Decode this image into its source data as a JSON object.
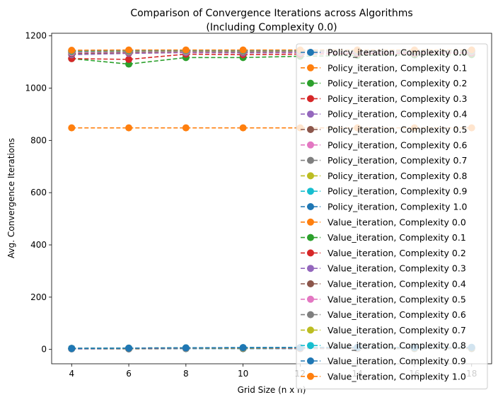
{
  "chart_data": {
    "type": "line",
    "title": "Comparison of Convergence Iterations across Algorithms",
    "subtitle": "(Including Complexity 0.0)",
    "xlabel": "Grid Size (n x n)",
    "ylabel": "Avg. Convergence Iterations",
    "x": [
      4,
      6,
      8,
      10,
      12,
      14,
      16,
      18
    ],
    "xticks": [
      4,
      6,
      8,
      10,
      12,
      14,
      16,
      18
    ],
    "yticks": [
      0,
      200,
      400,
      600,
      800,
      1000,
      1200
    ],
    "xlim": [
      3.3,
      18.7
    ],
    "ylim": [
      -55,
      1210
    ],
    "grid": false,
    "legend_position": "right",
    "line_style": "dashed",
    "marker": "circle",
    "series": [
      {
        "name": "Policy_iteration, Complexity 0.0",
        "color": "#1f77b4",
        "values": [
          2,
          2,
          3,
          3,
          3,
          3,
          3,
          3
        ]
      },
      {
        "name": "Policy_iteration, Complexity 0.1",
        "color": "#ff7f0e",
        "values": [
          3,
          3,
          4,
          4,
          4,
          4,
          4,
          4
        ]
      },
      {
        "name": "Policy_iteration, Complexity 0.2",
        "color": "#2ca02c",
        "values": [
          3,
          4,
          4,
          4,
          5,
          5,
          5,
          5
        ]
      },
      {
        "name": "Policy_iteration, Complexity 0.3",
        "color": "#d62728",
        "values": [
          3,
          4,
          5,
          5,
          5,
          5,
          6,
          6
        ]
      },
      {
        "name": "Policy_iteration, Complexity 0.4",
        "color": "#9467bd",
        "values": [
          3,
          4,
          5,
          5,
          6,
          6,
          6,
          6
        ]
      },
      {
        "name": "Policy_iteration, Complexity 0.5",
        "color": "#8c564b",
        "values": [
          4,
          4,
          5,
          6,
          6,
          6,
          6,
          6
        ]
      },
      {
        "name": "Policy_iteration, Complexity 0.6",
        "color": "#e377c2",
        "values": [
          4,
          5,
          5,
          6,
          6,
          6,
          7,
          7
        ]
      },
      {
        "name": "Policy_iteration, Complexity 0.7",
        "color": "#7f7f7f",
        "values": [
          4,
          5,
          6,
          6,
          7,
          7,
          7,
          7
        ]
      },
      {
        "name": "Policy_iteration, Complexity 0.8",
        "color": "#bcbd22",
        "values": [
          4,
          5,
          6,
          6,
          7,
          7,
          7,
          7
        ]
      },
      {
        "name": "Policy_iteration, Complexity 0.9",
        "color": "#17becf",
        "values": [
          4,
          5,
          6,
          7,
          7,
          7,
          7,
          8
        ]
      },
      {
        "name": "Policy_iteration, Complexity 1.0",
        "color": "#1f77b4",
        "values": [
          4,
          5,
          6,
          7,
          7,
          8,
          8,
          8
        ]
      },
      {
        "name": "Value_iteration, Complexity 0.0",
        "color": "#ff7f0e",
        "values": [
          848,
          848,
          848,
          848,
          848,
          848,
          848,
          848
        ]
      },
      {
        "name": "Value_iteration, Complexity 0.1",
        "color": "#2ca02c",
        "values": [
          1113,
          1092,
          1117,
          1117,
          1122,
          1125,
          1127,
          1128
        ]
      },
      {
        "name": "Value_iteration, Complexity 0.2",
        "color": "#d62728",
        "values": [
          1113,
          1110,
          1130,
          1128,
          1130,
          1132,
          1133,
          1134
        ]
      },
      {
        "name": "Value_iteration, Complexity 0.3",
        "color": "#9467bd",
        "values": [
          1128,
          1133,
          1136,
          1135,
          1136,
          1137,
          1137,
          1138
        ]
      },
      {
        "name": "Value_iteration, Complexity 0.4",
        "color": "#8c564b",
        "values": [
          1132,
          1136,
          1139,
          1138,
          1139,
          1140,
          1140,
          1140
        ]
      },
      {
        "name": "Value_iteration, Complexity 0.5",
        "color": "#e377c2",
        "values": [
          1136,
          1138,
          1140,
          1140,
          1140,
          1141,
          1141,
          1141
        ]
      },
      {
        "name": "Value_iteration, Complexity 0.6",
        "color": "#7f7f7f",
        "values": [
          1139,
          1140,
          1142,
          1141,
          1142,
          1142,
          1142,
          1142
        ]
      },
      {
        "name": "Value_iteration, Complexity 0.7",
        "color": "#bcbd22",
        "values": [
          1142,
          1143,
          1143,
          1143,
          1143,
          1143,
          1143,
          1143
        ]
      },
      {
        "name": "Value_iteration, Complexity 0.8",
        "color": "#17becf",
        "values": [
          1143,
          1144,
          1144,
          1144,
          1144,
          1144,
          1144,
          1144
        ]
      },
      {
        "name": "Value_iteration, Complexity 0.9",
        "color": "#1f77b4",
        "values": [
          1144,
          1145,
          1145,
          1145,
          1145,
          1145,
          1145,
          1145
        ]
      },
      {
        "name": "Value_iteration, Complexity 1.0",
        "color": "#ff7f0e",
        "values": [
          1145,
          1146,
          1146,
          1146,
          1146,
          1146,
          1146,
          1146
        ]
      }
    ]
  }
}
